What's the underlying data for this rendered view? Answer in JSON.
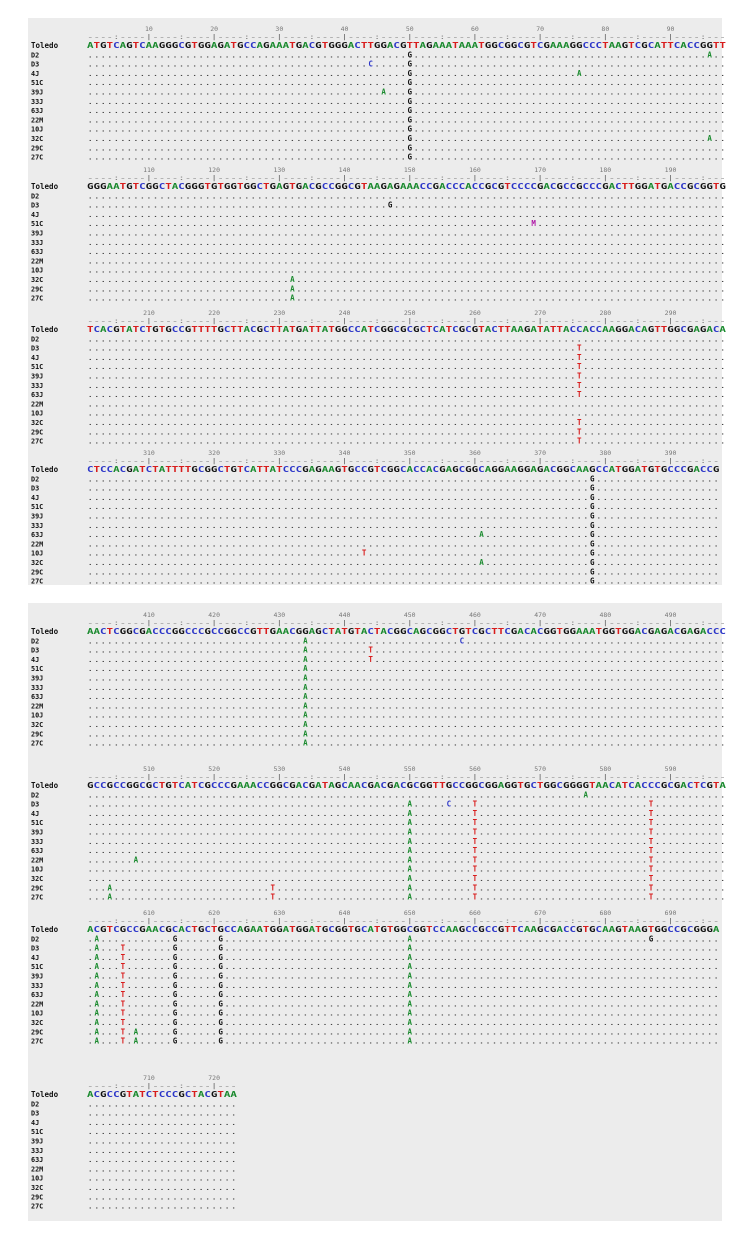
{
  "alignment": {
    "reference_name": "Toledo",
    "sample_names": [
      "D2",
      "D3",
      "4J",
      "51C",
      "39J",
      "33J",
      "63J",
      "22M",
      "10J",
      "32C",
      "29C",
      "27C"
    ],
    "blocks": [
      {
        "ticks": [
          "10",
          "20",
          "30",
          "40",
          "50",
          "60",
          "70",
          "80",
          "90"
        ],
        "reference": "ATGTCAGTCAAGGGCGTGGAGATGCCAGAAATGACGTGGGACTTGGACGTTAGAAATAAATGGCGGCGTCGAAAGGCCCTAAGTCGCATTCACCGGTT",
        "variants": [
          {
            "row": "D2",
            "col": 95,
            "base": "A"
          },
          {
            "row": "D2",
            "col": 49,
            "base": "G"
          },
          {
            "row": "D3",
            "col": 43,
            "base": "C"
          },
          {
            "row": "D3",
            "col": 49,
            "base": "G"
          },
          {
            "row": "4J",
            "col": 49,
            "base": "G"
          },
          {
            "row": "4J",
            "col": 75,
            "base": "A"
          },
          {
            "row": "51C",
            "col": 49,
            "base": "G"
          },
          {
            "row": "39J",
            "col": 45,
            "base": "A"
          },
          {
            "row": "39J",
            "col": 49,
            "base": "G"
          },
          {
            "row": "33J",
            "col": 49,
            "base": "G"
          },
          {
            "row": "63J",
            "col": 49,
            "base": "G"
          },
          {
            "row": "22M",
            "col": 49,
            "base": "G"
          },
          {
            "row": "10J",
            "col": 49,
            "base": "G"
          },
          {
            "row": "32C",
            "col": 49,
            "base": "G"
          },
          {
            "row": "32C",
            "col": 95,
            "base": "A"
          },
          {
            "row": "29C",
            "col": 49,
            "base": "G"
          },
          {
            "row": "27C",
            "col": 49,
            "base": "G"
          }
        ]
      },
      {
        "ticks": [
          "110",
          "120",
          "130",
          "140",
          "150",
          "160",
          "170",
          "180",
          "190"
        ],
        "reference": "GGGAATGTCGGCTACGGGTGTGGTGGCTGAGTGACGCCGGCGTAAGAGAAACCGACCCACCGCGTCCCCGACGCCGCCCGACTTGGATGACCGCGGTG",
        "variants": [
          {
            "row": "D3",
            "col": 46,
            "base": "G"
          },
          {
            "row": "51C",
            "col": 68,
            "base": "M"
          },
          {
            "row": "32C",
            "col": 31,
            "base": "A"
          },
          {
            "row": "29C",
            "col": 31,
            "base": "A"
          },
          {
            "row": "27C",
            "col": 31,
            "base": "A"
          }
        ]
      },
      {
        "ticks": [
          "210",
          "220",
          "230",
          "240",
          "250",
          "260",
          "270",
          "280",
          "290"
        ],
        "reference": "TCACGTATCTGTGCCGTTTTGCTTACGCTTATGATTATGGCCATCGGCGCGCTCATCGCGTACTTAAGATATTACCACCAAGGACAGTTGGCGAGACA",
        "variants": [
          {
            "row": "D3",
            "col": 75,
            "base": "T"
          },
          {
            "row": "4J",
            "col": 75,
            "base": "T"
          },
          {
            "row": "51C",
            "col": 75,
            "base": "T"
          },
          {
            "row": "39J",
            "col": 75,
            "base": "T"
          },
          {
            "row": "33J",
            "col": 75,
            "base": "T"
          },
          {
            "row": "63J",
            "col": 75,
            "base": "T"
          },
          {
            "row": "32C",
            "col": 75,
            "base": "T"
          },
          {
            "row": "29C",
            "col": 75,
            "base": "T"
          },
          {
            "row": "27C",
            "col": 75,
            "base": "T"
          }
        ]
      },
      {
        "ticks": [
          "310",
          "320",
          "330",
          "340",
          "350",
          "360",
          "370",
          "380",
          "390"
        ],
        "reference": "CTCCACGATCTATTTTGCGGCTGTCATTATCCCGAGAAGTGCCGTCGGCACCACGAGCGGCAGGAAGGAGACGGCAAGCCATGGATGTGCCCGACCG",
        "variants": [
          {
            "row": "D2",
            "col": 77,
            "base": "G"
          },
          {
            "row": "D3",
            "col": 77,
            "base": "G"
          },
          {
            "row": "4J",
            "col": 77,
            "base": "G"
          },
          {
            "row": "51C",
            "col": 77,
            "base": "G"
          },
          {
            "row": "39J",
            "col": 77,
            "base": "G"
          },
          {
            "row": "33J",
            "col": 77,
            "base": "G"
          },
          {
            "row": "63J",
            "col": 77,
            "base": "G"
          },
          {
            "row": "63J",
            "col": 60,
            "base": "A"
          },
          {
            "row": "22M",
            "col": 77,
            "base": "G"
          },
          {
            "row": "10J",
            "col": 77,
            "base": "G"
          },
          {
            "row": "10J",
            "col": 42,
            "base": "T"
          },
          {
            "row": "32C",
            "col": 77,
            "base": "G"
          },
          {
            "row": "32C",
            "col": 60,
            "base": "A"
          },
          {
            "row": "29C",
            "col": 77,
            "base": "G"
          },
          {
            "row": "27C",
            "col": 77,
            "base": "G"
          }
        ]
      },
      {
        "ticks": [
          "410",
          "420",
          "430",
          "440",
          "450",
          "460",
          "470",
          "480",
          "490"
        ],
        "reference": "AACTCGGCGACCCGGCCCGCCGGCCGTTGAACGGAGCTATGTACTACGGCAGCGGCTGTCGCTTCGACACGGTGGAAATGGTGGACGAGACGAGACCC",
        "variants": [
          {
            "row": "D2",
            "col": 57,
            "base": "C"
          },
          {
            "row": "D2",
            "col": 33,
            "base": "A"
          },
          {
            "row": "D3",
            "col": 33,
            "base": "A"
          },
          {
            "row": "D3",
            "col": 43,
            "base": "T"
          },
          {
            "row": "4J",
            "col": 33,
            "base": "A"
          },
          {
            "row": "4J",
            "col": 43,
            "base": "T"
          },
          {
            "row": "51C",
            "col": 33,
            "base": "A"
          },
          {
            "row": "39J",
            "col": 33,
            "base": "A"
          },
          {
            "row": "33J",
            "col": 33,
            "base": "A"
          },
          {
            "row": "63J",
            "col": 33,
            "base": "A"
          },
          {
            "row": "22M",
            "col": 33,
            "base": "A"
          },
          {
            "row": "10J",
            "col": 33,
            "base": "A"
          },
          {
            "row": "32C",
            "col": 33,
            "base": "A"
          },
          {
            "row": "29C",
            "col": 33,
            "base": "A"
          },
          {
            "row": "27C",
            "col": 33,
            "base": "A"
          }
        ]
      },
      {
        "ticks": [
          "510",
          "520",
          "530",
          "540",
          "550",
          "560",
          "570",
          "580",
          "590"
        ],
        "reference": "GCCGCCGGCGCTGTCATCGCCCGAAACCGGCGACGATAGCAACGACGACGCGGTTGCCGGCGGAGGTGCTGGCGGGGTAACATCACCCGCGACTCGTA",
        "variants": [
          {
            "row": "D2",
            "col": 76,
            "base": "A"
          },
          {
            "row": "D3",
            "col": 55,
            "base": "C"
          },
          {
            "row": "D3",
            "col": 49,
            "base": "A"
          },
          {
            "row": "D3",
            "col": 59,
            "base": "T"
          },
          {
            "row": "D3",
            "col": 86,
            "base": "T"
          },
          {
            "row": "4J",
            "col": 49,
            "base": "A"
          },
          {
            "row": "4J",
            "col": 59,
            "base": "T"
          },
          {
            "row": "4J",
            "col": 86,
            "base": "T"
          },
          {
            "row": "51C",
            "col": 49,
            "base": "A"
          },
          {
            "row": "51C",
            "col": 59,
            "base": "T"
          },
          {
            "row": "51C",
            "col": 86,
            "base": "T"
          },
          {
            "row": "39J",
            "col": 49,
            "base": "A"
          },
          {
            "row": "39J",
            "col": 59,
            "base": "T"
          },
          {
            "row": "39J",
            "col": 86,
            "base": "T"
          },
          {
            "row": "33J",
            "col": 49,
            "base": "A"
          },
          {
            "row": "33J",
            "col": 59,
            "base": "T"
          },
          {
            "row": "33J",
            "col": 86,
            "base": "T"
          },
          {
            "row": "63J",
            "col": 49,
            "base": "A"
          },
          {
            "row": "63J",
            "col": 59,
            "base": "T"
          },
          {
            "row": "63J",
            "col": 86,
            "base": "T"
          },
          {
            "row": "22M",
            "col": 7,
            "base": "A"
          },
          {
            "row": "22M",
            "col": 49,
            "base": "A"
          },
          {
            "row": "22M",
            "col": 59,
            "base": "T"
          },
          {
            "row": "22M",
            "col": 86,
            "base": "T"
          },
          {
            "row": "10J",
            "col": 49,
            "base": "A"
          },
          {
            "row": "10J",
            "col": 59,
            "base": "T"
          },
          {
            "row": "10J",
            "col": 86,
            "base": "T"
          },
          {
            "row": "32C",
            "col": 49,
            "base": "A"
          },
          {
            "row": "32C",
            "col": 59,
            "base": "T"
          },
          {
            "row": "32C",
            "col": 86,
            "base": "T"
          },
          {
            "row": "29C",
            "col": 3,
            "base": "A"
          },
          {
            "row": "29C",
            "col": 28,
            "base": "T"
          },
          {
            "row": "29C",
            "col": 49,
            "base": "A"
          },
          {
            "row": "29C",
            "col": 59,
            "base": "T"
          },
          {
            "row": "29C",
            "col": 86,
            "base": "T"
          },
          {
            "row": "27C",
            "col": 3,
            "base": "A"
          },
          {
            "row": "27C",
            "col": 28,
            "base": "T"
          },
          {
            "row": "27C",
            "col": 49,
            "base": "A"
          },
          {
            "row": "27C",
            "col": 59,
            "base": "T"
          },
          {
            "row": "27C",
            "col": 86,
            "base": "T"
          }
        ]
      },
      {
        "ticks": [
          "610",
          "620",
          "630",
          "640",
          "650",
          "660",
          "670",
          "680",
          "690"
        ],
        "reference": "ACGTCGCCGAACGCACTGCTGCCAGAATGGATGGATGCGGTGCATGTGGCGGTCCAAGCCGCCGTTCAAGCGACCGTGCAAGTAAGTGGCCGCGGGA",
        "variants": [
          {
            "row": "D2",
            "col": 1,
            "base": "A"
          },
          {
            "row": "D2",
            "col": 13,
            "base": "G"
          },
          {
            "row": "D2",
            "col": 20,
            "base": "G"
          },
          {
            "row": "D2",
            "col": 49,
            "base": "A"
          },
          {
            "row": "D2",
            "col": 86,
            "base": "G"
          },
          {
            "row": "D3",
            "col": 1,
            "base": "A"
          },
          {
            "row": "D3",
            "col": 5,
            "base": "T"
          },
          {
            "row": "D3",
            "col": 13,
            "base": "G"
          },
          {
            "row": "D3",
            "col": 20,
            "base": "G"
          },
          {
            "row": "D3",
            "col": 49,
            "base": "A"
          },
          {
            "row": "4J",
            "col": 1,
            "base": "A"
          },
          {
            "row": "4J",
            "col": 5,
            "base": "T"
          },
          {
            "row": "4J",
            "col": 13,
            "base": "G"
          },
          {
            "row": "4J",
            "col": 20,
            "base": "G"
          },
          {
            "row": "4J",
            "col": 49,
            "base": "A"
          },
          {
            "row": "51C",
            "col": 1,
            "base": "A"
          },
          {
            "row": "51C",
            "col": 5,
            "base": "T"
          },
          {
            "row": "51C",
            "col": 13,
            "base": "G"
          },
          {
            "row": "51C",
            "col": 20,
            "base": "G"
          },
          {
            "row": "51C",
            "col": 49,
            "base": "A"
          },
          {
            "row": "39J",
            "col": 1,
            "base": "A"
          },
          {
            "row": "39J",
            "col": 5,
            "base": "T"
          },
          {
            "row": "39J",
            "col": 13,
            "base": "G"
          },
          {
            "row": "39J",
            "col": 20,
            "base": "G"
          },
          {
            "row": "39J",
            "col": 49,
            "base": "A"
          },
          {
            "row": "33J",
            "col": 1,
            "base": "A"
          },
          {
            "row": "33J",
            "col": 5,
            "base": "T"
          },
          {
            "row": "33J",
            "col": 13,
            "base": "G"
          },
          {
            "row": "33J",
            "col": 20,
            "base": "G"
          },
          {
            "row": "33J",
            "col": 49,
            "base": "A"
          },
          {
            "row": "63J",
            "col": 1,
            "base": "A"
          },
          {
            "row": "63J",
            "col": 5,
            "base": "T"
          },
          {
            "row": "63J",
            "col": 13,
            "base": "G"
          },
          {
            "row": "63J",
            "col": 20,
            "base": "G"
          },
          {
            "row": "63J",
            "col": 49,
            "base": "A"
          },
          {
            "row": "22M",
            "col": 1,
            "base": "A"
          },
          {
            "row": "22M",
            "col": 5,
            "base": "T"
          },
          {
            "row": "22M",
            "col": 13,
            "base": "G"
          },
          {
            "row": "22M",
            "col": 20,
            "base": "G"
          },
          {
            "row": "22M",
            "col": 49,
            "base": "A"
          },
          {
            "row": "10J",
            "col": 1,
            "base": "A"
          },
          {
            "row": "10J",
            "col": 5,
            "base": "T"
          },
          {
            "row": "10J",
            "col": 13,
            "base": "G"
          },
          {
            "row": "10J",
            "col": 20,
            "base": "G"
          },
          {
            "row": "10J",
            "col": 49,
            "base": "A"
          },
          {
            "row": "32C",
            "col": 1,
            "base": "A"
          },
          {
            "row": "32C",
            "col": 5,
            "base": "T"
          },
          {
            "row": "32C",
            "col": 13,
            "base": "G"
          },
          {
            "row": "32C",
            "col": 20,
            "base": "G"
          },
          {
            "row": "32C",
            "col": 49,
            "base": "A"
          },
          {
            "row": "29C",
            "col": 1,
            "base": "A"
          },
          {
            "row": "29C",
            "col": 5,
            "base": "T"
          },
          {
            "row": "29C",
            "col": 7,
            "base": "A"
          },
          {
            "row": "29C",
            "col": 13,
            "base": "G"
          },
          {
            "row": "29C",
            "col": 20,
            "base": "G"
          },
          {
            "row": "29C",
            "col": 49,
            "base": "A"
          },
          {
            "row": "27C",
            "col": 1,
            "base": "A"
          },
          {
            "row": "27C",
            "col": 5,
            "base": "T"
          },
          {
            "row": "27C",
            "col": 7,
            "base": "A"
          },
          {
            "row": "27C",
            "col": 13,
            "base": "G"
          },
          {
            "row": "27C",
            "col": 20,
            "base": "G"
          },
          {
            "row": "27C",
            "col": 49,
            "base": "A"
          }
        ]
      },
      {
        "ticks": [
          "710",
          "720"
        ],
        "reference": "ACGCCGTATCTCCCGCTACGTAA",
        "variants": []
      }
    ]
  },
  "colors": {
    "panel_bg": "#ececec",
    "page_bg": "#ffffff",
    "base_A": "#1a8a2e",
    "base_C": "#2b35c8",
    "base_G": "#111111",
    "base_T": "#d81c1c",
    "base_M": "#b01aa8",
    "dots": "#444444",
    "labels": "#111111",
    "ruler": "#777777"
  }
}
